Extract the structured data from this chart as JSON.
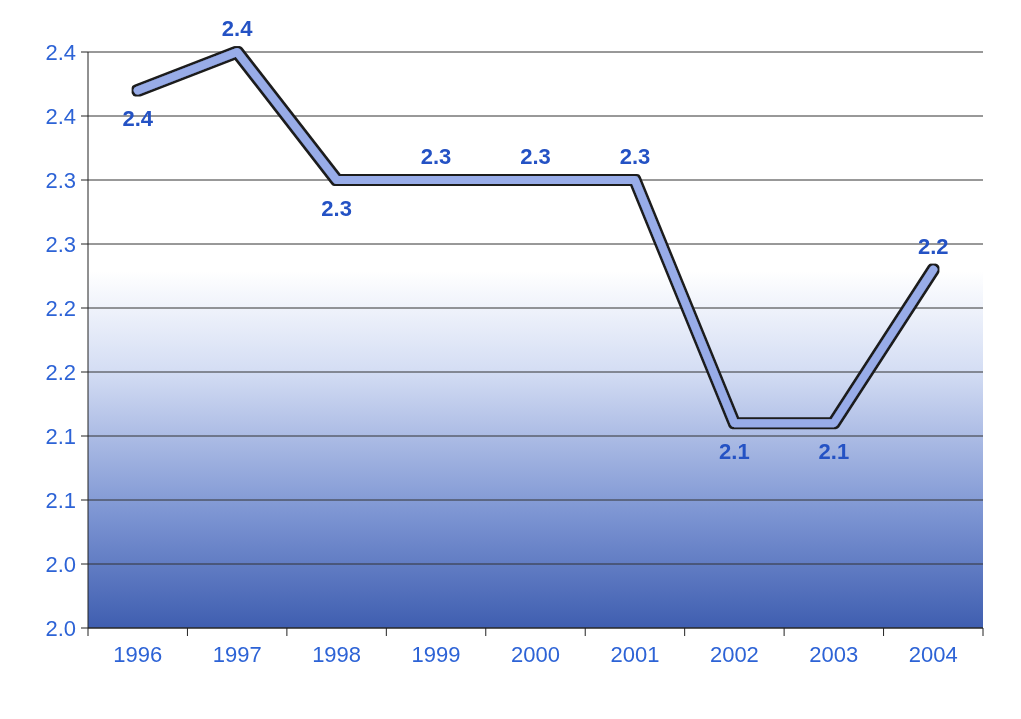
{
  "chart_data": {
    "type": "line",
    "categories": [
      "1996",
      "1997",
      "1998",
      "1999",
      "2000",
      "2001",
      "2002",
      "2003",
      "2004"
    ],
    "values": [
      2.37,
      2.4,
      2.3,
      2.3,
      2.3,
      2.3,
      2.11,
      2.11,
      2.23
    ],
    "value_labels": [
      "2.4",
      "2.4",
      "2.3",
      "2.3",
      "2.3",
      "2.3",
      "2.1",
      "2.1",
      "2.2"
    ],
    "color": "#98ace8",
    "ylim": [
      1.95,
      2.4
    ],
    "yticks": [
      {
        "value": 1.95,
        "label": "2.0"
      },
      {
        "value": 2,
        "label": "2.0"
      },
      {
        "value": 2.05,
        "label": "2.1"
      },
      2.1,
      {
        "value": 2.15,
        "label": "2.2"
      },
      2.2,
      {
        "value": 2.25,
        "label": "2.3"
      },
      2.3,
      {
        "value": 2.35,
        "label": "2.4"
      },
      2.4
    ],
    "grid": "y"
  }
}
